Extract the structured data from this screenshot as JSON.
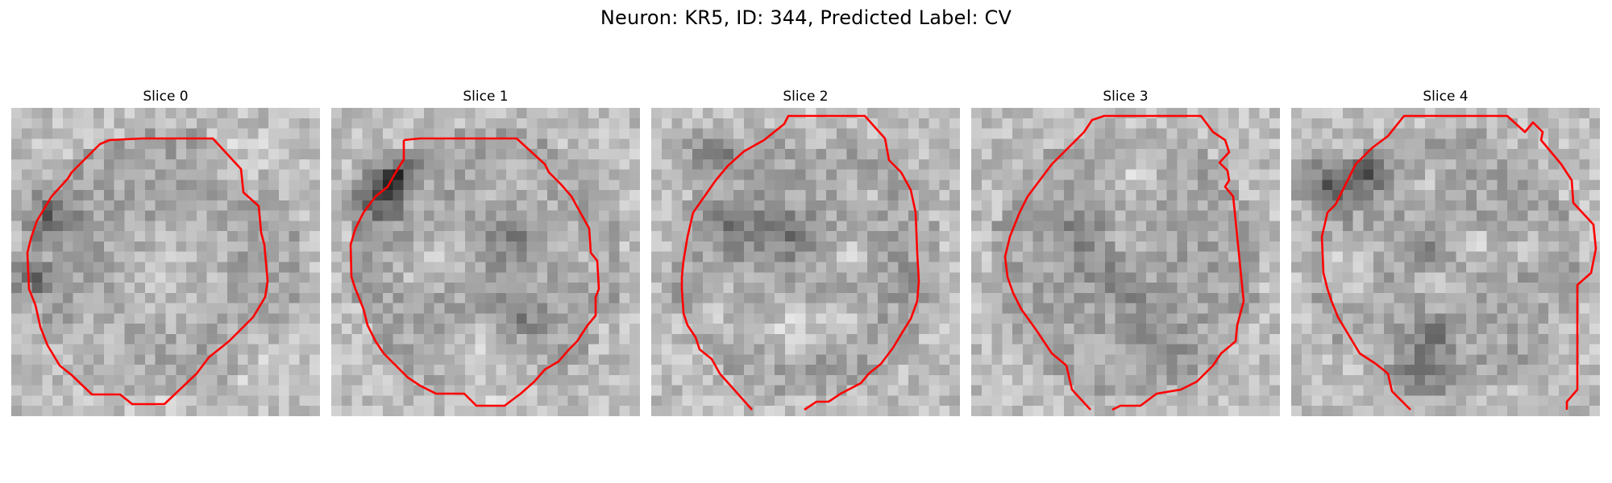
{
  "figure": {
    "title": "Neuron: KR5, ID: 344, Predicted Label: CV"
  },
  "panels": [
    {
      "title": "Slice 0"
    },
    {
      "title": "Slice 1"
    },
    {
      "title": "Slice 2"
    },
    {
      "title": "Slice 3"
    },
    {
      "title": "Slice 4"
    }
  ],
  "colors": {
    "contour": "#ff0000",
    "background": "#ffffff",
    "colormap": "grayscale"
  }
}
